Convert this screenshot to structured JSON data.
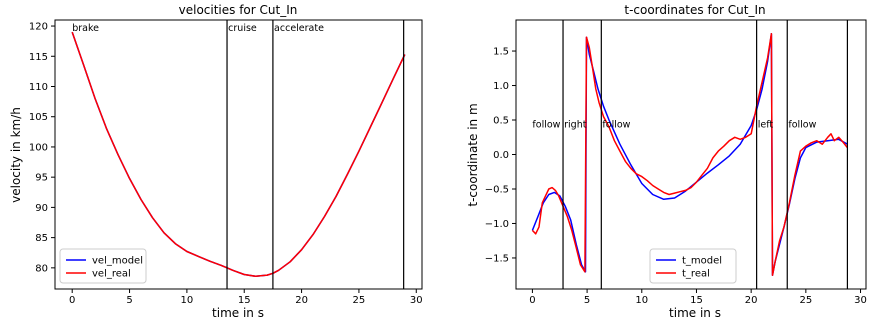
{
  "chart_data": [
    {
      "type": "line",
      "title": "velocities for Cut_In",
      "xlabel": "time in s",
      "ylabel": "velocity in km/h",
      "xlim": [
        -1.5,
        30.5
      ],
      "ylim": [
        76.5,
        121
      ],
      "xticks": [
        0,
        5,
        10,
        15,
        20,
        25,
        30
      ],
      "yticks": [
        80,
        85,
        90,
        95,
        100,
        105,
        110,
        115,
        120
      ],
      "grid": false,
      "legend_position": "lower-left",
      "vlines": [
        {
          "x": 13.5,
          "label": ""
        },
        {
          "x": 17.5,
          "label": ""
        },
        {
          "x": 28.9,
          "label": ""
        }
      ],
      "phase_labels": [
        {
          "x": 0.0,
          "text": "brake"
        },
        {
          "x": 13.6,
          "text": "cruise"
        },
        {
          "x": 17.6,
          "text": "accelerate"
        }
      ],
      "series": [
        {
          "name": "vel_model",
          "color": "#0000ff",
          "x": [
            0,
            1,
            2,
            3,
            4,
            5,
            6,
            7,
            8,
            9,
            10,
            11,
            12,
            13,
            13.5,
            14,
            15,
            16,
            17,
            17.5,
            18,
            19,
            20,
            21,
            22,
            23,
            24,
            25,
            26,
            27,
            28,
            29
          ],
          "y": [
            119,
            113.5,
            108,
            103,
            98.7,
            94.8,
            91.3,
            88.3,
            85.8,
            84.0,
            82.7,
            81.9,
            81.1,
            80.4,
            80.0,
            79.6,
            78.9,
            78.6,
            78.8,
            79.1,
            79.6,
            81.0,
            83.0,
            85.5,
            88.5,
            91.8,
            95.5,
            99.3,
            103.3,
            107.3,
            111.3,
            115.3
          ]
        },
        {
          "name": "vel_real",
          "color": "#ff0000",
          "x": [
            0,
            1,
            2,
            3,
            4,
            5,
            6,
            7,
            8,
            9,
            10,
            11,
            12,
            13,
            13.5,
            14,
            15,
            16,
            17,
            17.5,
            18,
            19,
            20,
            21,
            22,
            23,
            24,
            25,
            26,
            27,
            28,
            29
          ],
          "y": [
            119,
            113.5,
            108,
            103,
            98.7,
            94.8,
            91.3,
            88.3,
            85.8,
            84.0,
            82.7,
            81.9,
            81.1,
            80.4,
            80.0,
            79.6,
            78.9,
            78.6,
            78.8,
            79.1,
            79.6,
            81.0,
            83.0,
            85.5,
            88.5,
            91.8,
            95.5,
            99.3,
            103.3,
            107.3,
            111.3,
            115.3
          ]
        }
      ]
    },
    {
      "type": "line",
      "title": "t-coordinates for Cut_In",
      "xlabel": "time in s",
      "ylabel": "t-coordinate in m",
      "xlim": [
        -1.5,
        30.5
      ],
      "ylim": [
        -1.95,
        1.95
      ],
      "xticks": [
        0,
        5,
        10,
        15,
        20,
        25,
        30
      ],
      "yticks": [
        -1.5,
        -1.0,
        -0.5,
        0.0,
        0.5,
        1.0,
        1.5
      ],
      "ytick_labels": [
        "−1.5",
        "−1.0",
        "−0.5",
        "0.0",
        "0.5",
        "1.0",
        "1.5"
      ],
      "grid": false,
      "legend_position": "lower-center",
      "vlines": [
        {
          "x": 2.8,
          "label": ""
        },
        {
          "x": 6.3,
          "label": ""
        },
        {
          "x": 20.5,
          "label": ""
        },
        {
          "x": 23.3,
          "label": ""
        },
        {
          "x": 28.8,
          "label": ""
        }
      ],
      "phase_labels": [
        {
          "x": 0.0,
          "text": "follow"
        },
        {
          "x": 2.9,
          "text": "right"
        },
        {
          "x": 6.4,
          "text": "follow"
        },
        {
          "x": 20.6,
          "text": "left"
        },
        {
          "x": 23.4,
          "text": "follow"
        }
      ],
      "series": [
        {
          "name": "t_model",
          "color": "#0000ff",
          "x": [
            0,
            0.5,
            1,
            1.5,
            2,
            2.5,
            3,
            3.5,
            4,
            4.5,
            4.85,
            4.95,
            5.2,
            5.6,
            6,
            6.5,
            7,
            8,
            9,
            10,
            11,
            12,
            13,
            14,
            15,
            16,
            17,
            18,
            19,
            20,
            20.5,
            21,
            21.5,
            21.85,
            21.95,
            22.2,
            22.6,
            23,
            23.5,
            24,
            24.5,
            25,
            26,
            27,
            28,
            28.8
          ],
          "y": [
            -1.1,
            -0.9,
            -0.7,
            -0.58,
            -0.55,
            -0.6,
            -0.75,
            -0.95,
            -1.3,
            -1.6,
            -1.7,
            1.7,
            1.45,
            1.2,
            0.95,
            0.7,
            0.5,
            0.15,
            -0.15,
            -0.42,
            -0.58,
            -0.65,
            -0.63,
            -0.53,
            -0.4,
            -0.27,
            -0.15,
            -0.02,
            0.15,
            0.42,
            0.65,
            0.95,
            1.35,
            1.75,
            -1.75,
            -1.55,
            -1.3,
            -1.05,
            -0.72,
            -0.35,
            -0.05,
            0.1,
            0.18,
            0.2,
            0.22,
            0.15
          ]
        },
        {
          "name": "t_real",
          "color": "#ff0000",
          "x": [
            0,
            0.3,
            0.6,
            0.9,
            1.2,
            1.5,
            1.8,
            2.1,
            2.4,
            2.8,
            3.2,
            3.6,
            4,
            4.4,
            4.8,
            4.95,
            5.2,
            5.5,
            5.8,
            6.1,
            6.5,
            7,
            7.5,
            8,
            8.5,
            9,
            9.5,
            10,
            10.5,
            11,
            11.5,
            12,
            12.5,
            13,
            13.5,
            14,
            14.5,
            15,
            15.5,
            16,
            16.5,
            17,
            17.5,
            18,
            18.5,
            19,
            19.5,
            20,
            20.5,
            21,
            21.5,
            21.85,
            21.95,
            22.2,
            22.6,
            23,
            23.5,
            24,
            24.5,
            25,
            25.5,
            26,
            26.5,
            27,
            27.3,
            27.6,
            28,
            28.4,
            28.8
          ],
          "y": [
            -1.1,
            -1.15,
            -1.05,
            -0.7,
            -0.6,
            -0.5,
            -0.48,
            -0.52,
            -0.6,
            -0.75,
            -0.9,
            -1.1,
            -1.35,
            -1.6,
            -1.7,
            1.7,
            1.55,
            1.25,
            0.95,
            0.75,
            0.55,
            0.4,
            0.2,
            0.05,
            -0.1,
            -0.2,
            -0.28,
            -0.32,
            -0.38,
            -0.45,
            -0.5,
            -0.55,
            -0.58,
            -0.56,
            -0.54,
            -0.52,
            -0.48,
            -0.4,
            -0.3,
            -0.2,
            -0.05,
            0.05,
            0.12,
            0.2,
            0.25,
            0.22,
            0.25,
            0.3,
            0.7,
            1.05,
            1.4,
            1.75,
            -1.75,
            -1.55,
            -1.25,
            -1.05,
            -0.7,
            -0.3,
            0.05,
            0.12,
            0.17,
            0.2,
            0.15,
            0.25,
            0.3,
            0.2,
            0.25,
            0.18,
            0.1
          ]
        }
      ]
    }
  ]
}
